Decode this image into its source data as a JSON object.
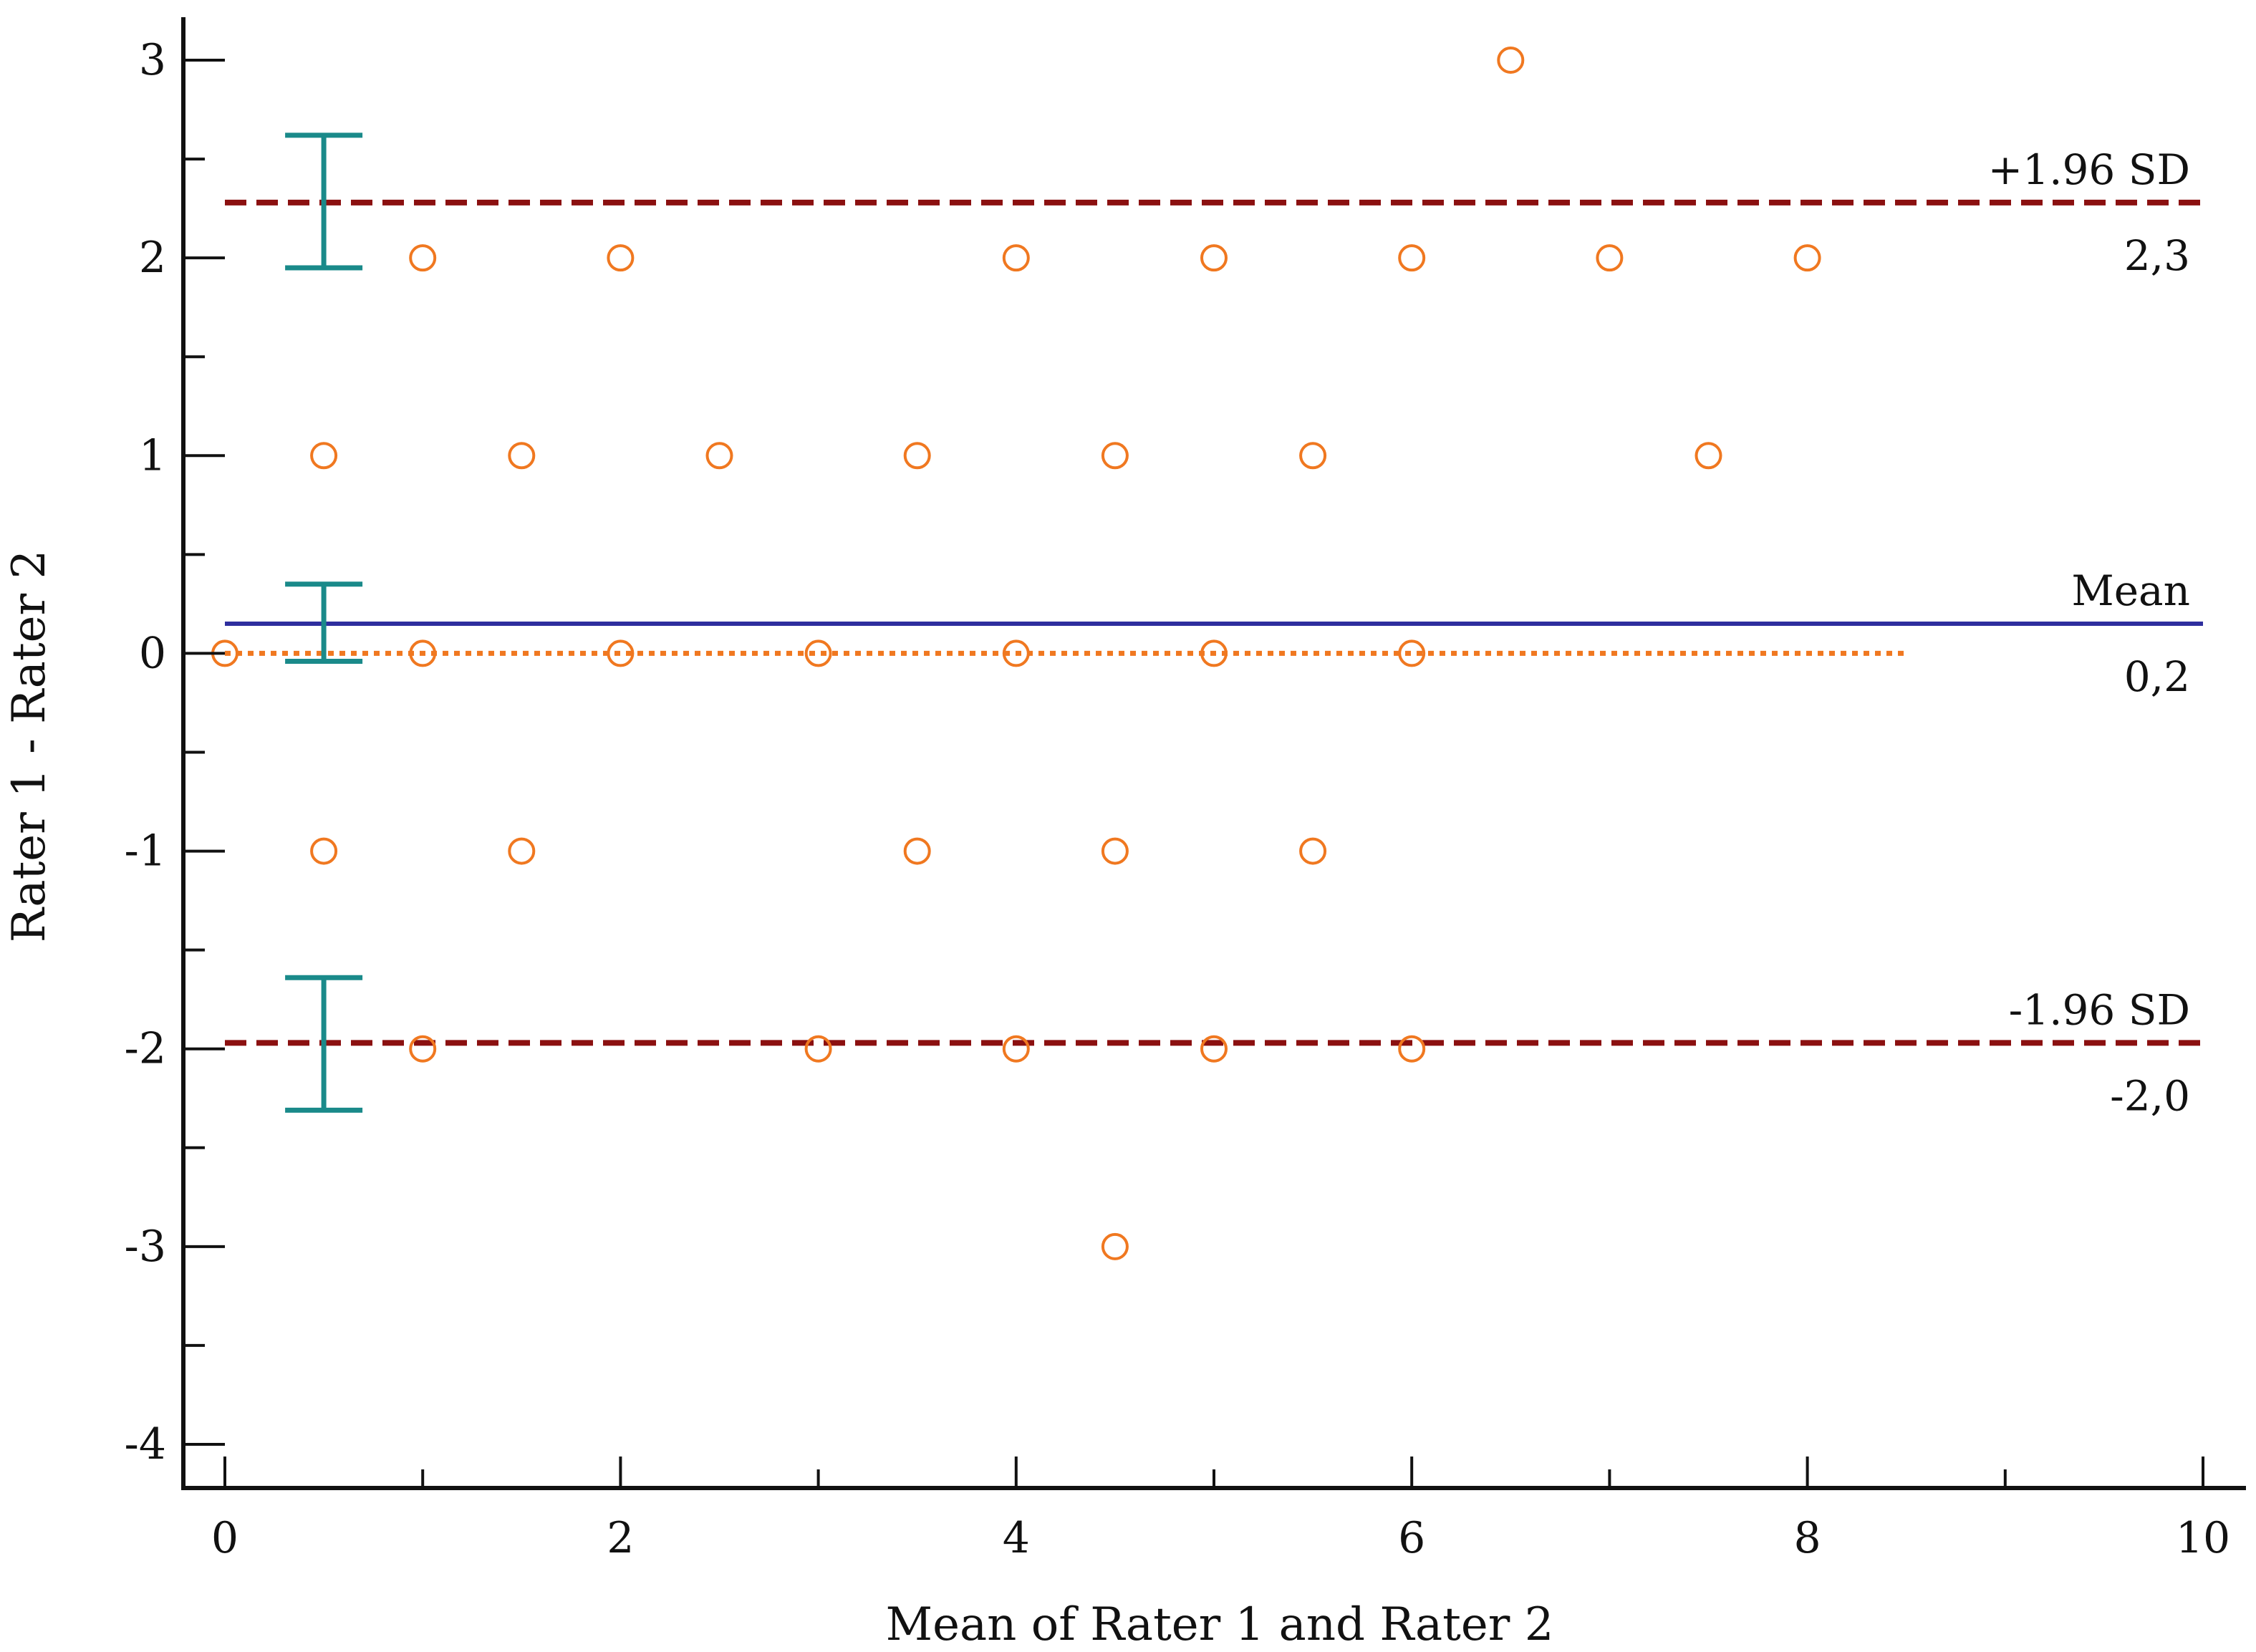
{
  "chart_data": {
    "type": "scatter",
    "subtype": "bland-altman",
    "title": "",
    "xlabel": "Mean of Rater 1 and Rater 2",
    "ylabel": "Rater 1 - Rater 2",
    "xlim": [
      0,
      10
    ],
    "ylim": [
      -4,
      3.2
    ],
    "x_ticks": [
      0,
      2,
      4,
      6,
      8,
      10
    ],
    "x_tick_labels": [
      "0",
      "2",
      "4",
      "6",
      "8",
      "10"
    ],
    "x_minor_ticks": [
      1,
      3,
      5,
      7,
      9
    ],
    "y_ticks": [
      -4,
      -3,
      -2,
      -1,
      0,
      1,
      2,
      3
    ],
    "y_tick_labels": [
      "-4",
      "-3",
      "-2",
      "-1",
      "0",
      "1",
      "2",
      "3"
    ],
    "y_minor_ticks": [
      -3.5,
      -2.5,
      -1.5,
      -0.5,
      0.5,
      1.5,
      2.5
    ],
    "grid": false,
    "points": [
      {
        "x": 6.5,
        "y": 3
      },
      {
        "x": 1,
        "y": 2
      },
      {
        "x": 2,
        "y": 2
      },
      {
        "x": 4,
        "y": 2
      },
      {
        "x": 5,
        "y": 2
      },
      {
        "x": 6,
        "y": 2
      },
      {
        "x": 7,
        "y": 2
      },
      {
        "x": 8,
        "y": 2
      },
      {
        "x": 0.5,
        "y": 1
      },
      {
        "x": 1.5,
        "y": 1
      },
      {
        "x": 2.5,
        "y": 1
      },
      {
        "x": 3.5,
        "y": 1
      },
      {
        "x": 4.5,
        "y": 1
      },
      {
        "x": 5.5,
        "y": 1
      },
      {
        "x": 7.5,
        "y": 1
      },
      {
        "x": 0,
        "y": 0
      },
      {
        "x": 1,
        "y": 0
      },
      {
        "x": 2,
        "y": 0
      },
      {
        "x": 3,
        "y": 0
      },
      {
        "x": 4,
        "y": 0
      },
      {
        "x": 5,
        "y": 0
      },
      {
        "x": 6,
        "y": 0
      },
      {
        "x": 0.5,
        "y": -1
      },
      {
        "x": 1.5,
        "y": -1
      },
      {
        "x": 3.5,
        "y": -1
      },
      {
        "x": 4.5,
        "y": -1
      },
      {
        "x": 5.5,
        "y": -1
      },
      {
        "x": 1,
        "y": -2
      },
      {
        "x": 3,
        "y": -2
      },
      {
        "x": 4,
        "y": -2
      },
      {
        "x": 5,
        "y": -2
      },
      {
        "x": 6,
        "y": -2
      },
      {
        "x": 4.5,
        "y": -3
      }
    ],
    "reference_lines": [
      {
        "name": "upper-loa",
        "y": 2.28,
        "x_range": [
          0,
          10
        ],
        "style": "dashed",
        "color": "#8b1010",
        "label_top": "+1.96 SD",
        "label_bottom": "2,3"
      },
      {
        "name": "mean",
        "y": 0.15,
        "x_range": [
          0,
          10
        ],
        "style": "solid",
        "color": "#2e2e9e",
        "label_top": "Mean",
        "label_bottom": "0,2"
      },
      {
        "name": "lower-loa",
        "y": -1.97,
        "x_range": [
          0,
          10
        ],
        "style": "dashed",
        "color": "#8b1010",
        "label_top": "-1.96 SD",
        "label_bottom": "-2,0"
      },
      {
        "name": "zero-line",
        "y": 0,
        "x_range": [
          0,
          8.5
        ],
        "style": "dotted",
        "color": "#f07820"
      }
    ],
    "confidence_intervals": [
      {
        "name": "upper-loa-ci",
        "x": 0.5,
        "low": 1.95,
        "high": 2.62
      },
      {
        "name": "mean-ci",
        "x": 0.5,
        "low": -0.04,
        "high": 0.35
      },
      {
        "name": "lower-loa-ci",
        "x": 0.5,
        "low": -2.31,
        "high": -1.64
      }
    ],
    "colors": {
      "points": "#f07820",
      "ci": "#1a8a8a",
      "axis": "#111111"
    }
  }
}
